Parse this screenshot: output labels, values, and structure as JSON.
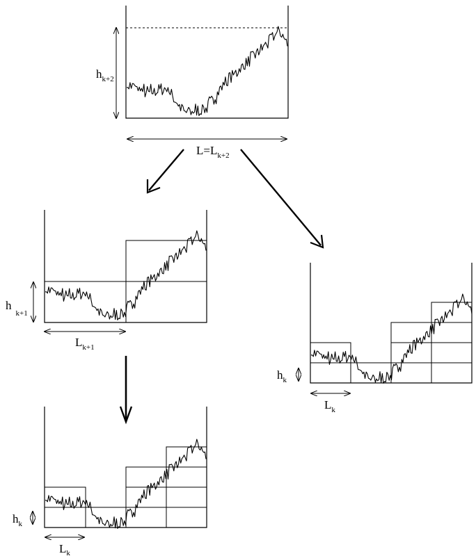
{
  "labels": {
    "top_height": {
      "main": "h",
      "sub": "k+2"
    },
    "top_length": {
      "main": "L=L",
      "sub": "k+2"
    },
    "mid_height": {
      "main": "h",
      "sub": "k+1"
    },
    "mid_length": {
      "main": "L",
      "sub": "k+1"
    },
    "right_height": {
      "main": "h",
      "sub": "k"
    },
    "right_length": {
      "main": "L",
      "sub": "k"
    },
    "bottom_height": {
      "main": "h",
      "sub": "k"
    },
    "bottom_length": {
      "main": "L",
      "sub": "k"
    }
  },
  "trace_seed": 7
}
